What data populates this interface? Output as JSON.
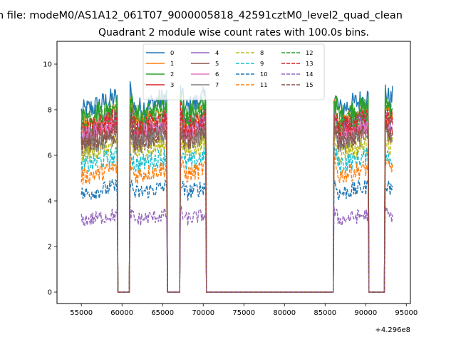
{
  "suptitle": "n file: modeM0/AS1A12_061T07_9000005818_42591cztM0_level2_quad_clean",
  "chart_data": {
    "type": "line",
    "title": "Quadrant 2 module wise count rates with 100.0s bins.",
    "xlabel": "",
    "ylabel": "",
    "x_offset_text": "+4.296e8",
    "xlim": [
      52000,
      95500
    ],
    "ylim": [
      -0.5,
      11.0
    ],
    "xticks": [
      55000,
      60000,
      65000,
      70000,
      75000,
      80000,
      85000,
      90000,
      95000
    ],
    "xtick_labels": [
      "55000",
      "60000",
      "65000",
      "70000",
      "75000",
      "80000",
      "85000",
      "90000",
      "95000"
    ],
    "yticks": [
      0,
      2,
      4,
      6,
      8,
      10
    ],
    "ytick_labels": [
      "0",
      "2",
      "4",
      "6",
      "8",
      "10"
    ],
    "grid": false,
    "legend_position": "top-center",
    "legend_columns": 4,
    "active_segments": [
      [
        55000,
        59400
      ],
      [
        61000,
        65500
      ],
      [
        67200,
        70300
      ],
      [
        86100,
        90300
      ],
      [
        92400,
        93300
      ]
    ],
    "series": [
      {
        "name": "0",
        "color": "#1f77b4",
        "dash": "solid",
        "level": 8.3
      },
      {
        "name": "1",
        "color": "#ff7f0e",
        "dash": "solid",
        "level": 7.6
      },
      {
        "name": "2",
        "color": "#2ca02c",
        "dash": "solid",
        "level": 8.0
      },
      {
        "name": "3",
        "color": "#d62728",
        "dash": "solid",
        "level": 7.1
      },
      {
        "name": "4",
        "color": "#9467bd",
        "dash": "solid",
        "level": 7.4
      },
      {
        "name": "5",
        "color": "#8c564b",
        "dash": "solid",
        "level": 6.9
      },
      {
        "name": "6",
        "color": "#e377c2",
        "dash": "solid",
        "level": 7.2
      },
      {
        "name": "7",
        "color": "#7f7f7f",
        "dash": "solid",
        "level": 6.7
      },
      {
        "name": "8",
        "color": "#bcbd22",
        "dash": "dashed",
        "level": 6.3
      },
      {
        "name": "9",
        "color": "#17becf",
        "dash": "dashed",
        "level": 5.8
      },
      {
        "name": "10",
        "color": "#1f77b4",
        "dash": "dashed",
        "level": 4.5
      },
      {
        "name": "11",
        "color": "#ff7f0e",
        "dash": "dashed",
        "level": 5.3
      },
      {
        "name": "12",
        "color": "#2ca02c",
        "dash": "dashed",
        "level": 7.7
      },
      {
        "name": "13",
        "color": "#d62728",
        "dash": "dashed",
        "level": 7.4
      },
      {
        "name": "14",
        "color": "#9467bd",
        "dash": "dashed",
        "level": 3.3
      },
      {
        "name": "15",
        "color": "#8c564b",
        "dash": "dashed",
        "level": 6.8
      }
    ]
  }
}
